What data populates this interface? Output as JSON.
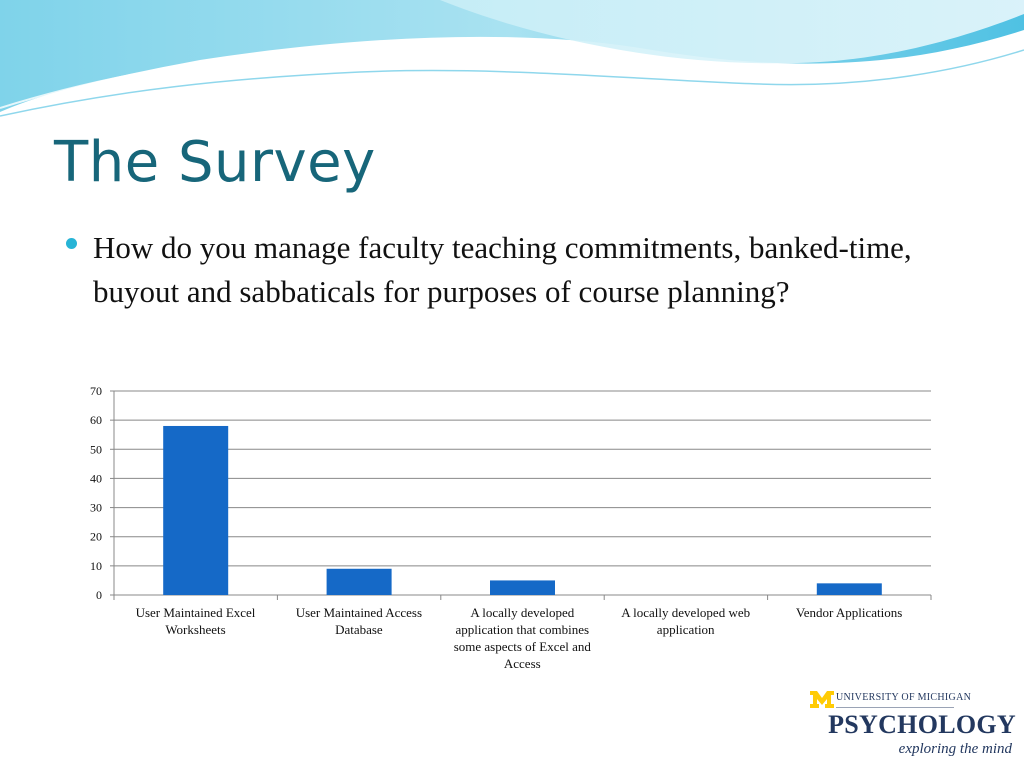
{
  "slide": {
    "title": "The Survey",
    "bullet": "How do you manage faculty teaching commitments, banked-time, buyout and sabbaticals for purposes of course planning?"
  },
  "logo": {
    "university": "UNIVERSITY OF MICHIGAN",
    "department": "PSYCHOLOGY",
    "tagline": "exploring the mind"
  },
  "colors": {
    "title": "#17667a",
    "bar": "#1569c7",
    "accent": "#27b4d6"
  },
  "chart_data": {
    "type": "bar",
    "categories": [
      "User Maintained Excel Worksheets",
      "User Maintained Access Database",
      "A locally developed application that combines some aspects of Excel and Access",
      "A locally developed web application",
      "Vendor Applications"
    ],
    "values": [
      58,
      9,
      5,
      0,
      4
    ],
    "yticks": [
      "0",
      "10",
      "20",
      "30",
      "40",
      "50",
      "60",
      "70"
    ],
    "ylim": [
      0,
      70
    ],
    "grid": true,
    "title": "",
    "xlabel": "",
    "ylabel": ""
  }
}
